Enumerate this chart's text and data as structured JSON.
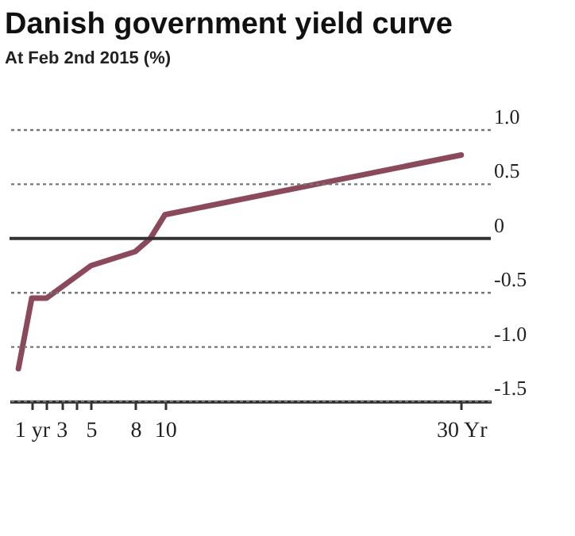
{
  "chart_data": {
    "type": "line",
    "title": "Danish government yield curve",
    "subtitle": "At Feb 2nd 2015 (%)",
    "x": [
      0.1,
      1,
      2,
      5,
      8,
      9,
      10,
      30
    ],
    "series": [
      {
        "color": "#8b4a5c",
        "values": [
          -1.2,
          -0.55,
          -0.55,
          -0.25,
          -0.12,
          0.0,
          0.22,
          0.77
        ]
      }
    ],
    "xlim": [
      -0.5,
      32
    ],
    "xticks": [
      {
        "value": 1,
        "label": "1\nyr"
      },
      {
        "value": 2,
        "label": null
      },
      3,
      {
        "value": 4,
        "label": null
      },
      5,
      8,
      10,
      {
        "value": 30,
        "label": "30 Yr"
      }
    ],
    "ylim": [
      -1.5,
      1.0
    ],
    "yticks": [
      {
        "value": 1.0,
        "label": "1.0"
      },
      0.5,
      0,
      -0.5,
      {
        "value": -1.0,
        "label": "-1.0"
      },
      -1.5
    ],
    "ref_lines": [
      {
        "axis": "y",
        "value": 0,
        "color": "#333333",
        "line_style": "solid"
      }
    ],
    "grid": "y",
    "line_style": "solid",
    "marker": "none"
  }
}
